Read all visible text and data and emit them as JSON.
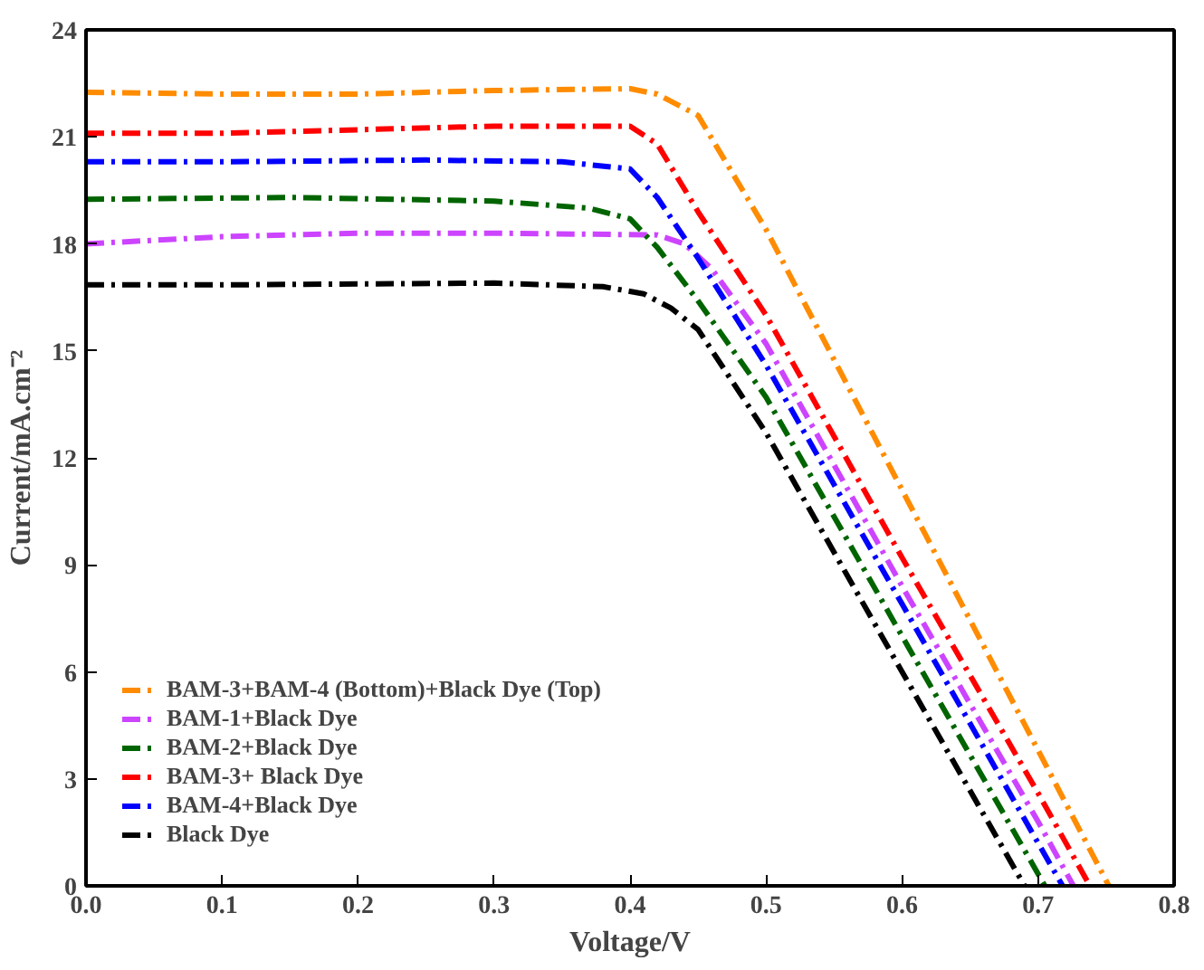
{
  "chart_data": {
    "type": "line",
    "xlabel": "Voltage/V",
    "ylabel": "Current/mA.cm⁻²",
    "xlim": [
      0,
      0.8
    ],
    "ylim": [
      0,
      24
    ],
    "xticks": [
      {
        "value": 0,
        "label": "0.0"
      },
      0.1,
      0.2,
      0.3,
      0.4,
      0.5,
      0.6,
      0.7,
      0.8
    ],
    "yticks": [
      0,
      3,
      6,
      9,
      12,
      15,
      18,
      21,
      24
    ],
    "grid": false,
    "legend": "bottom left",
    "marker": "none",
    "line_style": "dashdot",
    "series": [
      {
        "name": "BAM-3+BAM-4 (Bottom)+Black Dye (Top)",
        "color": "#ff8c00",
        "x": [
          0,
          0.1,
          0.2,
          0.3,
          0.4,
          0.42,
          0.45,
          0.5,
          0.6,
          0.7,
          0.752
        ],
        "values": [
          22.25,
          22.2,
          22.2,
          22.3,
          22.35,
          22.2,
          21.6,
          18.4,
          11.1,
          3.8,
          0
        ]
      },
      {
        "name": "BAM-1+Black Dye",
        "color": "#cc44ff",
        "x": [
          0,
          0.1,
          0.2,
          0.3,
          0.42,
          0.44,
          0.46,
          0.5,
          0.6,
          0.7,
          0.726
        ],
        "values": [
          18.0,
          18.2,
          18.3,
          18.3,
          18.25,
          18.0,
          17.3,
          15.2,
          8.4,
          1.8,
          0
        ]
      },
      {
        "name": "BAM-2+Black Dye",
        "color": "#006400",
        "x": [
          0,
          0.15,
          0.3,
          0.37,
          0.4,
          0.42,
          0.45,
          0.5,
          0.6,
          0.705
        ],
        "values": [
          19.25,
          19.3,
          19.2,
          19.0,
          18.7,
          17.9,
          16.4,
          13.7,
          7.0,
          0
        ]
      },
      {
        "name": "BAM-3+ Black Dye",
        "color": "#ff0000",
        "x": [
          0,
          0.1,
          0.2,
          0.3,
          0.4,
          0.42,
          0.45,
          0.5,
          0.6,
          0.7,
          0.738
        ],
        "values": [
          21.1,
          21.1,
          21.2,
          21.3,
          21.3,
          20.8,
          18.9,
          16.0,
          9.2,
          2.6,
          0
        ]
      },
      {
        "name": "BAM-4+Black Dye",
        "color": "#0000ff",
        "x": [
          0,
          0.1,
          0.25,
          0.35,
          0.4,
          0.42,
          0.45,
          0.5,
          0.6,
          0.7,
          0.718
        ],
        "values": [
          20.3,
          20.3,
          20.35,
          20.3,
          20.1,
          19.3,
          17.6,
          14.6,
          7.9,
          1.2,
          0
        ]
      },
      {
        "name": "Black Dye",
        "color": "#000000",
        "x": [
          0,
          0.1,
          0.3,
          0.38,
          0.41,
          0.43,
          0.45,
          0.5,
          0.6,
          0.69
        ],
        "values": [
          16.85,
          16.85,
          16.9,
          16.8,
          16.6,
          16.2,
          15.6,
          12.7,
          6.0,
          0
        ]
      }
    ]
  }
}
